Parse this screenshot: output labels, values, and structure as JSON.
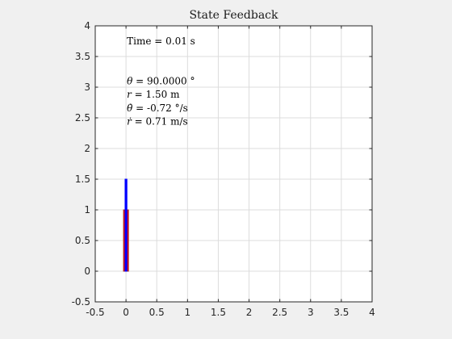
{
  "figure": {
    "background": "#f0f0f0",
    "axes_background": "#ffffff",
    "axis_color": "#262626",
    "grid_color": "#dcdcdc"
  },
  "chart_data": {
    "type": "animation-frame",
    "title": "State Feedback",
    "xlabel": "",
    "ylabel": "",
    "xlim": [
      -0.5,
      4
    ],
    "ylim": [
      -0.5,
      4
    ],
    "xticks": [
      -0.5,
      0,
      0.5,
      1,
      1.5,
      2,
      2.5,
      3,
      3.5,
      4
    ],
    "yticks": [
      -0.5,
      0,
      0.5,
      1,
      1.5,
      2,
      2.5,
      3,
      3.5,
      4
    ],
    "xtick_labels": [
      "-0.5",
      "0",
      "0.5",
      "1",
      "1.5",
      "2",
      "2.5",
      "3",
      "3.5",
      "4"
    ],
    "ytick_labels": [
      "-0.5",
      "0",
      "0.5",
      "1",
      "1.5",
      "2",
      "2.5",
      "3",
      "3.5",
      "4"
    ],
    "grid": true,
    "annotations": {
      "time": {
        "x": 0,
        "y": 3.75,
        "text": "Time = 0.01 s"
      },
      "theta": {
        "x": 0,
        "y": 3.1,
        "symbol": "θ",
        "text": " = 90.0000 °"
      },
      "r": {
        "x": 0,
        "y": 2.88,
        "symbol": "r",
        "text": " = 1.50 m"
      },
      "theta_dot": {
        "x": 0,
        "y": 2.66,
        "symbol": "θ̇",
        "text": " = -0.72 °/s"
      },
      "r_dot": {
        "x": 0,
        "y": 2.44,
        "symbol": "ṙ",
        "text": " = 0.71 m/s"
      }
    },
    "shapes": [
      {
        "name": "base-block",
        "x": [
          -0.04,
          0.04
        ],
        "y": [
          0,
          1
        ],
        "fill": "#ff0000",
        "edge": "#a02828"
      },
      {
        "name": "pendulum-rod",
        "x": [
          -0.015,
          0.015
        ],
        "y": [
          0,
          1.5
        ],
        "fill": "#0000ff",
        "edge": "#0000ff"
      }
    ]
  }
}
